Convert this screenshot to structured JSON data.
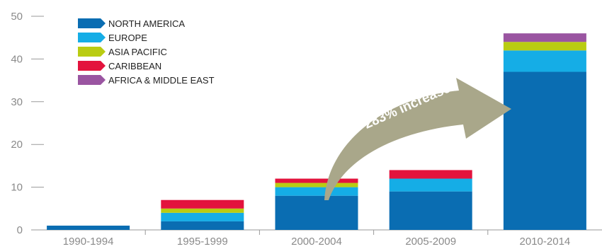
{
  "chart_data": {
    "type": "bar",
    "stacked": true,
    "title": "",
    "xlabel": "",
    "ylabel": "",
    "ylim": [
      0,
      50
    ],
    "yticks": [
      0,
      10,
      20,
      30,
      40,
      50
    ],
    "grid": false,
    "legend_position": "top-left",
    "categories": [
      "1990-1994",
      "1995-1999",
      "2000-2004",
      "2005-2009",
      "2010-2014"
    ],
    "series": [
      {
        "name": "NORTH AMERICA",
        "color": "#0a6db2",
        "values": [
          1,
          2,
          8,
          9,
          37
        ]
      },
      {
        "name": "EUROPE",
        "color": "#15ade6",
        "values": [
          0,
          2,
          2,
          3,
          5
        ]
      },
      {
        "name": "ASIA PACIFIC",
        "color": "#b9cc12",
        "values": [
          0,
          1,
          1,
          0,
          2
        ]
      },
      {
        "name": "CARIBBEAN",
        "color": "#e3133d",
        "values": [
          0,
          2,
          1,
          2,
          0
        ]
      },
      {
        "name": "AFRICA & MIDDLE EAST",
        "color": "#9a55a1",
        "values": [
          0,
          0,
          0,
          0,
          2
        ]
      }
    ],
    "annotation": {
      "text": "283% increase",
      "color": "#a9a78a",
      "from_category": "2000-2004",
      "to_category": "2010-2014"
    },
    "axis_color": "#9a9a9a"
  }
}
